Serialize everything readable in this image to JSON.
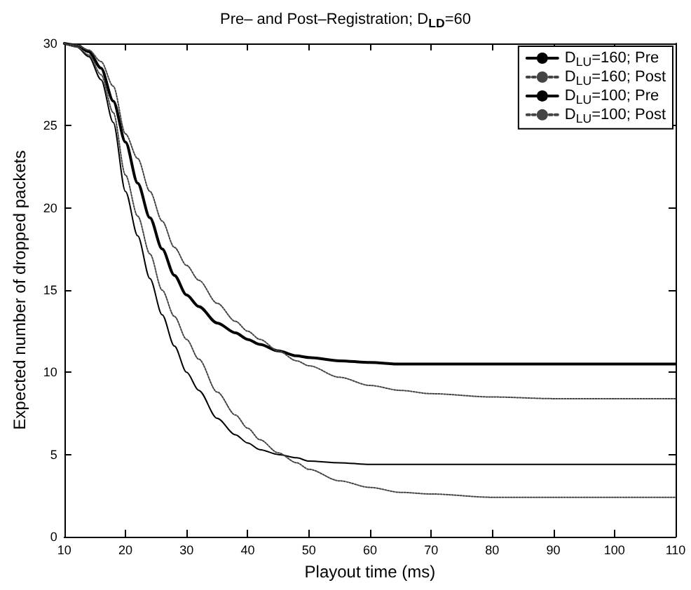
{
  "chart_data": {
    "type": "line",
    "title": "Pre– and Post–Registration; D$_{LD}$=60",
    "xlabel": "Playout time (ms)",
    "ylabel": "Expected number of dropped packets",
    "x": [
      10,
      12,
      14,
      16,
      18,
      20,
      22,
      24,
      26,
      28,
      30,
      32,
      35,
      38,
      40,
      42,
      45,
      48,
      50,
      55,
      60,
      65,
      70,
      80,
      90,
      100,
      110
    ],
    "series": [
      {
        "name": "D$_{LU}$=160; Pre",
        "color": "#000000",
        "line_style": "solid",
        "values": [
          30,
          29.9,
          29.5,
          28.5,
          26.5,
          24.0,
          21.5,
          19.4,
          17.5,
          15.9,
          14.7,
          14.0,
          13.0,
          12.4,
          12.0,
          11.7,
          11.3,
          11.0,
          10.9,
          10.7,
          10.6,
          10.5,
          10.5,
          10.5,
          10.5,
          10.5,
          10.5
        ]
      },
      {
        "name": "D$_{LU}$=160; Post",
        "color": "#444444",
        "line_style": "dotted",
        "values": [
          30,
          29.9,
          29.6,
          28.9,
          27.4,
          24.5,
          23.0,
          21.0,
          19.2,
          17.6,
          16.5,
          15.6,
          14.2,
          13.1,
          12.5,
          12.0,
          11.3,
          10.7,
          10.4,
          9.7,
          9.2,
          8.9,
          8.7,
          8.5,
          8.4,
          8.4,
          8.4
        ]
      },
      {
        "name": "D$_{LU}$=100; Pre",
        "color": "#000000",
        "line_style": "solid",
        "values": [
          30,
          29.8,
          29.2,
          27.8,
          25.2,
          21,
          18.3,
          15.7,
          13.5,
          11.6,
          10,
          8.9,
          7.2,
          6.2,
          5.7,
          5.3,
          5.0,
          4.8,
          4.6,
          4.5,
          4.4,
          4.4,
          4.4,
          4.4,
          4.4,
          4.4,
          4.4
        ]
      },
      {
        "name": "D$_{LU}$=100; Post",
        "color": "#444444",
        "line_style": "dotted",
        "values": [
          30,
          29.8,
          29.3,
          28.1,
          25.8,
          22,
          19.5,
          17.2,
          15.0,
          13.4,
          12,
          10.8,
          8.8,
          7.4,
          6.6,
          5.9,
          5.1,
          4.5,
          4.1,
          3.4,
          3.0,
          2.7,
          2.6,
          2.4,
          2.4,
          2.4,
          2.4
        ]
      }
    ],
    "xlim": [
      10,
      110
    ],
    "xticks": [
      10,
      20,
      30,
      40,
      50,
      60,
      70,
      80,
      90,
      100,
      110
    ],
    "ylim": [
      0,
      30
    ],
    "yticks": [
      0,
      5,
      10,
      15,
      20,
      25,
      30
    ],
    "grid": false,
    "legend": "top right",
    "marker": "none"
  }
}
